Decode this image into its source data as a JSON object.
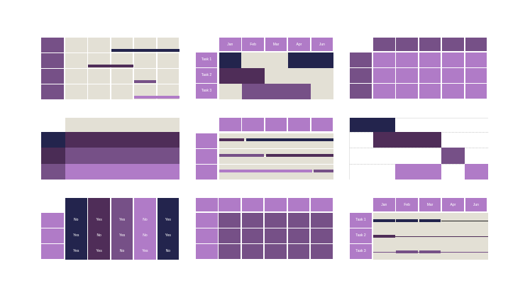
{
  "colors": {
    "navy": "#23244d",
    "plum": "#4f2d58",
    "mid": "#765087",
    "light": "#b07bc7",
    "beige": "#e3e0d5"
  },
  "gantt_table": {
    "months": [
      "Jan",
      "Feb",
      "Mar",
      "Apr",
      "Jun"
    ],
    "tasks": [
      "Task 1",
      "Task 2",
      "Task 3"
    ]
  },
  "yes_no_table": {
    "columns": [
      [
        "No",
        "Yes",
        "Yes"
      ],
      [
        "Yes",
        "No",
        "Yes"
      ],
      [
        "Yes",
        "Yes",
        "No"
      ],
      [
        "No",
        "No",
        "Yes"
      ],
      [
        "Yes",
        "Yes",
        "No"
      ]
    ]
  },
  "line_gantt": {
    "months": [
      "Jan",
      "Feb",
      "Mar",
      "Apr",
      "Jun"
    ],
    "tasks": [
      "Task 1",
      "Task 2",
      "Task 3"
    ]
  }
}
